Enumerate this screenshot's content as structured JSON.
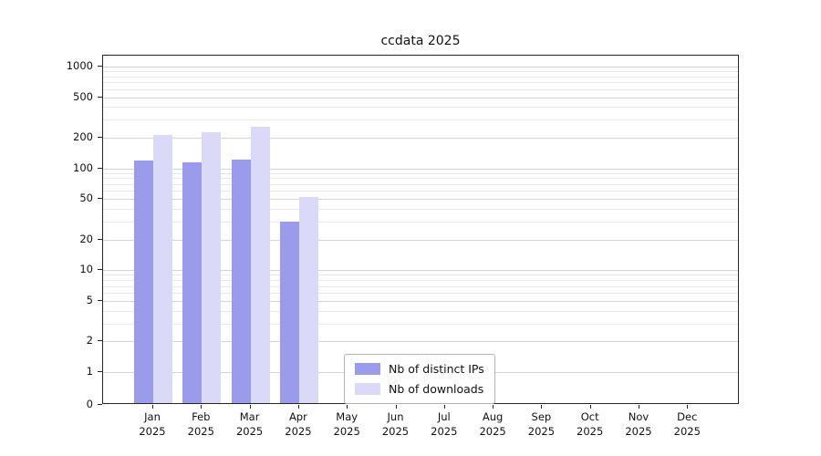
{
  "chart_data": {
    "type": "bar",
    "title": "ccdata 2025",
    "categories": [
      "Jan 2025",
      "Feb 2025",
      "Mar 2025",
      "Apr 2025",
      "May 2025",
      "Jun 2025",
      "Jul 2025",
      "Aug 2025",
      "Sep 2025",
      "Oct 2025",
      "Nov 2025",
      "Dec 2025"
    ],
    "series": [
      {
        "name": "Nb of distinct IPs",
        "color": "#9b9bec",
        "values": [
          120,
          115,
          122,
          30,
          0,
          0,
          0,
          0,
          0,
          0,
          0,
          0
        ]
      },
      {
        "name": "Nb of downloads",
        "color": "#dadaf8",
        "values": [
          215,
          225,
          255,
          52,
          0,
          0,
          0,
          0,
          0,
          0,
          0,
          0
        ]
      }
    ],
    "yscale": "symlog",
    "yticks": [
      0,
      1,
      2,
      5,
      10,
      20,
      50,
      100,
      200,
      500,
      1000
    ],
    "ylim": [
      0,
      1270
    ],
    "grid": "horizontal",
    "legend_position": "lower center"
  }
}
